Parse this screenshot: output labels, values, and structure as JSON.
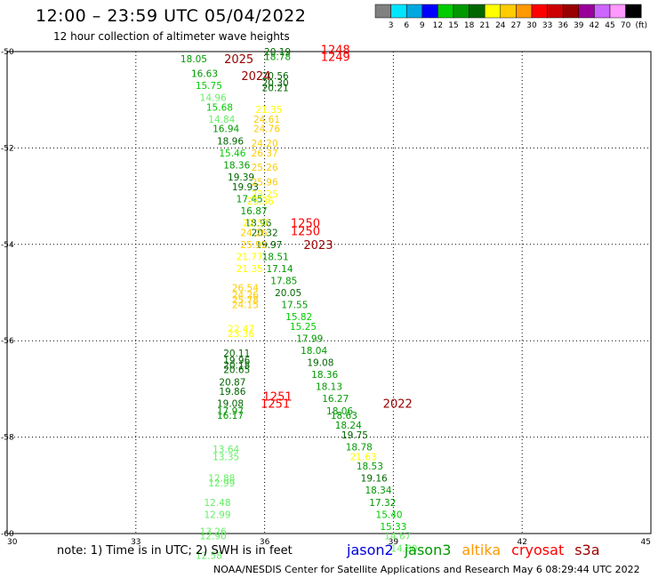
{
  "header": {
    "title": "12:00 – 23:59 UTC 05/04/2022",
    "subtitle": "12 hour collection of altimeter wave heights"
  },
  "legend_scale": {
    "labels": [
      "3",
      "6",
      "9",
      "12",
      "15",
      "18",
      "21",
      "24",
      "27",
      "30",
      "33",
      "36",
      "39",
      "42",
      "45",
      "70"
    ],
    "unit": "(ft)",
    "colors": [
      "#808080",
      "#00e5ff",
      "#00a8e0",
      "#0000ff",
      "#00cc00",
      "#009900",
      "#006600",
      "#ffff00",
      "#ffcc00",
      "#ff9900",
      "#ff0000",
      "#cc0000",
      "#990000",
      "#990099",
      "#cc66ff",
      "#ff99ff",
      "#000000"
    ]
  },
  "footer": {
    "note": "note:  1) Time is in UTC;  2) SWH is in feet",
    "credit": "NOAA/NESDIS Center for Satellite Applications and Research    May  6 08:29:44 UTC 2022",
    "satellites": [
      {
        "name": "jason2",
        "color": "#0000dd"
      },
      {
        "name": "jason3",
        "color": "#009900"
      },
      {
        "name": "altika",
        "color": "#ff9900"
      },
      {
        "name": "cryosat",
        "color": "#ff0000"
      },
      {
        "name": "s3a",
        "color": "#990000"
      }
    ]
  },
  "chart_data": {
    "type": "scatter",
    "title": "12:00 – 23:59 UTC 05/04/2022",
    "xlim": [
      30,
      45
    ],
    "ylim": [
      -60,
      -50
    ],
    "x_ticks": [
      "30",
      "33",
      "36",
      "39",
      "42",
      "45"
    ],
    "y_ticks": [
      "-50",
      "-52",
      "-54",
      "-56",
      "-58",
      "-60"
    ],
    "grid": true,
    "time_labels": [
      {
        "text": "2025",
        "lon": 35.4,
        "lat": -50.15,
        "color": "#990000"
      },
      {
        "text": "2024",
        "lon": 35.8,
        "lat": -50.5,
        "color": "#990000"
      },
      {
        "text": "1248",
        "lon": 37.65,
        "lat": -49.95,
        "color": "#ff0000"
      },
      {
        "text": "1249",
        "lon": 37.65,
        "lat": -50.1,
        "color": "#ff0000"
      },
      {
        "text": "1250",
        "lon": 36.95,
        "lat": -53.55,
        "color": "#ff0000"
      },
      {
        "text": "1250",
        "lon": 36.95,
        "lat": -53.72,
        "color": "#ff0000"
      },
      {
        "text": "2023",
        "lon": 37.25,
        "lat": -54.0,
        "color": "#990000"
      },
      {
        "text": "1251",
        "lon": 36.3,
        "lat": -57.15,
        "color": "#ff0000"
      },
      {
        "text": "1251",
        "lon": 36.25,
        "lat": -57.3,
        "color": "#ff0000"
      },
      {
        "text": "2022",
        "lon": 39.1,
        "lat": -57.3,
        "color": "#990000"
      }
    ],
    "series": [
      {
        "points": [
          {
            "text": "18.05",
            "lon": 34.35,
            "lat": -50.15,
            "color": "#009900"
          },
          {
            "text": "16.63",
            "lon": 34.6,
            "lat": -50.45,
            "color": "#009900"
          },
          {
            "text": "15.75",
            "lon": 34.7,
            "lat": -50.7,
            "color": "#00cc00"
          },
          {
            "text": "14.96",
            "lon": 34.8,
            "lat": -50.95,
            "color": "#66ee66"
          },
          {
            "text": "15.68",
            "lon": 34.95,
            "lat": -51.15,
            "color": "#00cc00"
          },
          {
            "text": "14.84",
            "lon": 35.0,
            "lat": -51.4,
            "color": "#66ee66"
          },
          {
            "text": "16.94",
            "lon": 35.1,
            "lat": -51.6,
            "color": "#009900"
          },
          {
            "text": "18.96",
            "lon": 35.2,
            "lat": -51.85,
            "color": "#006600"
          },
          {
            "text": "15.46",
            "lon": 35.25,
            "lat": -52.1,
            "color": "#00cc00"
          },
          {
            "text": "18.36",
            "lon": 35.35,
            "lat": -52.35,
            "color": "#009900"
          },
          {
            "text": "19.39",
            "lon": 35.45,
            "lat": -52.6,
            "color": "#006600"
          },
          {
            "text": "19.93",
            "lon": 35.55,
            "lat": -52.8,
            "color": "#006600"
          },
          {
            "text": "17.45",
            "lon": 35.65,
            "lat": -53.05,
            "color": "#009900"
          },
          {
            "text": "16.87",
            "lon": 35.75,
            "lat": -53.3,
            "color": "#009900"
          },
          {
            "text": "18.96",
            "lon": 35.85,
            "lat": -53.55,
            "color": "#006600"
          },
          {
            "text": "20.32",
            "lon": 36.0,
            "lat": -53.75,
            "color": "#006600"
          },
          {
            "text": "19.97",
            "lon": 36.1,
            "lat": -54.0,
            "color": "#006600"
          },
          {
            "text": "18.51",
            "lon": 36.25,
            "lat": -54.25,
            "color": "#009900"
          },
          {
            "text": "17.14",
            "lon": 36.35,
            "lat": -54.5,
            "color": "#009900"
          },
          {
            "text": "17.85",
            "lon": 36.45,
            "lat": -54.75,
            "color": "#009900"
          },
          {
            "text": "20.05",
            "lon": 36.55,
            "lat": -55.0,
            "color": "#006600"
          },
          {
            "text": "17.55",
            "lon": 36.7,
            "lat": -55.25,
            "color": "#009900"
          },
          {
            "text": "15.82",
            "lon": 36.8,
            "lat": -55.5,
            "color": "#00cc00"
          },
          {
            "text": "15.25",
            "lon": 36.9,
            "lat": -55.7,
            "color": "#00cc00"
          },
          {
            "text": "17.99",
            "lon": 37.05,
            "lat": -55.95,
            "color": "#009900"
          },
          {
            "text": "18.04",
            "lon": 37.15,
            "lat": -56.2,
            "color": "#009900"
          },
          {
            "text": "19.08",
            "lon": 37.3,
            "lat": -56.45,
            "color": "#006600"
          },
          {
            "text": "18.36",
            "lon": 37.4,
            "lat": -56.7,
            "color": "#009900"
          },
          {
            "text": "18.13",
            "lon": 37.5,
            "lat": -56.95,
            "color": "#009900"
          },
          {
            "text": "16.27",
            "lon": 37.65,
            "lat": -57.2,
            "color": "#009900"
          },
          {
            "text": "18.06",
            "lon": 37.75,
            "lat": -57.45,
            "color": "#009900"
          },
          {
            "text": "18.63",
            "lon": 37.85,
            "lat": -57.55,
            "color": "#009900"
          },
          {
            "text": "18.24",
            "lon": 37.95,
            "lat": -57.75,
            "color": "#009900"
          },
          {
            "text": "19.75",
            "lon": 38.1,
            "lat": -57.95,
            "color": "#006600"
          },
          {
            "text": "18.78",
            "lon": 38.2,
            "lat": -58.2,
            "color": "#009900"
          },
          {
            "text": "21.63",
            "lon": 38.3,
            "lat": -58.4,
            "color": "#ffff00"
          },
          {
            "text": "18.53",
            "lon": 38.45,
            "lat": -58.6,
            "color": "#009900"
          },
          {
            "text": "19.16",
            "lon": 38.55,
            "lat": -58.85,
            "color": "#006600"
          },
          {
            "text": "18.34",
            "lon": 38.65,
            "lat": -59.1,
            "color": "#009900"
          },
          {
            "text": "17.32",
            "lon": 38.75,
            "lat": -59.35,
            "color": "#009900"
          },
          {
            "text": "15.40",
            "lon": 38.9,
            "lat": -59.6,
            "color": "#00cc00"
          },
          {
            "text": "15.33",
            "lon": 39.0,
            "lat": -59.85,
            "color": "#00cc00"
          },
          {
            "text": "14.67",
            "lon": 39.1,
            "lat": -60.05,
            "color": "#66ee66"
          },
          {
            "text": "14.80",
            "lon": 39.25,
            "lat": -60.3,
            "color": "#66ee66"
          }
        ]
      },
      {
        "points": [
          {
            "text": "20.19",
            "lon": 36.3,
            "lat": -50.0,
            "color": "#006600"
          },
          {
            "text": "18.78",
            "lon": 36.3,
            "lat": -50.1,
            "color": "#009900"
          },
          {
            "text": "20.56",
            "lon": 36.25,
            "lat": -50.5,
            "color": "#006600"
          },
          {
            "text": "20.30",
            "lon": 36.25,
            "lat": -50.65,
            "color": "#006600"
          },
          {
            "text": "20.21",
            "lon": 36.25,
            "lat": -50.75,
            "color": "#006600"
          },
          {
            "text": "21.35",
            "lon": 36.1,
            "lat": -51.2,
            "color": "#ffff00"
          },
          {
            "text": "24.61",
            "lon": 36.05,
            "lat": -51.4,
            "color": "#ffcc00"
          },
          {
            "text": "24.76",
            "lon": 36.05,
            "lat": -51.6,
            "color": "#ffcc00"
          },
          {
            "text": "24.20",
            "lon": 36.0,
            "lat": -51.9,
            "color": "#ffcc00"
          },
          {
            "text": "26.37",
            "lon": 36.0,
            "lat": -52.1,
            "color": "#ffcc00"
          },
          {
            "text": "25.26",
            "lon": 36.0,
            "lat": -52.4,
            "color": "#ffcc00"
          },
          {
            "text": "25.96",
            "lon": 36.0,
            "lat": -52.7,
            "color": "#ffcc00"
          },
          {
            "text": "23.25",
            "lon": 36.0,
            "lat": -52.95,
            "color": "#ffff00"
          },
          {
            "text": "23.36",
            "lon": 35.9,
            "lat": -53.1,
            "color": "#ffff00"
          },
          {
            "text": "22.57",
            "lon": 35.8,
            "lat": -53.55,
            "color": "#ffff00"
          },
          {
            "text": "24.26",
            "lon": 35.75,
            "lat": -53.75,
            "color": "#ffcc00"
          },
          {
            "text": "25.92",
            "lon": 35.75,
            "lat": -54.0,
            "color": "#ffcc00"
          },
          {
            "text": "21.77",
            "lon": 35.65,
            "lat": -54.25,
            "color": "#ffff00"
          },
          {
            "text": "21.35",
            "lon": 35.65,
            "lat": -54.5,
            "color": "#ffff00"
          },
          {
            "text": "26.54",
            "lon": 35.55,
            "lat": -54.9,
            "color": "#ffcc00"
          },
          {
            "text": "24.26",
            "lon": 35.55,
            "lat": -55.05,
            "color": "#ffcc00"
          },
          {
            "text": "25.78",
            "lon": 35.55,
            "lat": -55.15,
            "color": "#ffcc00"
          },
          {
            "text": "24.15",
            "lon": 35.55,
            "lat": -55.25,
            "color": "#ffcc00"
          },
          {
            "text": "22.47",
            "lon": 35.45,
            "lat": -55.75,
            "color": "#ffff00"
          },
          {
            "text": "23.36",
            "lon": 35.45,
            "lat": -55.85,
            "color": "#ffff00"
          },
          {
            "text": "20.11",
            "lon": 35.35,
            "lat": -56.25,
            "color": "#006600"
          },
          {
            "text": "19.96",
            "lon": 35.35,
            "lat": -56.4,
            "color": "#006600"
          },
          {
            "text": "20.18",
            "lon": 35.35,
            "lat": -56.5,
            "color": "#006600"
          },
          {
            "text": "20.65",
            "lon": 35.35,
            "lat": -56.6,
            "color": "#006600"
          },
          {
            "text": "20.87",
            "lon": 35.25,
            "lat": -56.85,
            "color": "#006600"
          },
          {
            "text": "19.86",
            "lon": 35.25,
            "lat": -57.05,
            "color": "#006600"
          },
          {
            "text": "19.08",
            "lon": 35.2,
            "lat": -57.3,
            "color": "#006600"
          },
          {
            "text": "17.97",
            "lon": 35.2,
            "lat": -57.45,
            "color": "#009900"
          },
          {
            "text": "16.17",
            "lon": 35.2,
            "lat": -57.55,
            "color": "#009900"
          },
          {
            "text": "13.64",
            "lon": 35.1,
            "lat": -58.25,
            "color": "#66ee66"
          },
          {
            "text": "13.35",
            "lon": 35.1,
            "lat": -58.4,
            "color": "#66ee66"
          },
          {
            "text": "12.88",
            "lon": 35.0,
            "lat": -58.85,
            "color": "#66ee66"
          },
          {
            "text": "12.99",
            "lon": 35.0,
            "lat": -58.95,
            "color": "#66ee66"
          },
          {
            "text": "12.48",
            "lon": 34.9,
            "lat": -59.35,
            "color": "#66ee66"
          },
          {
            "text": "12.99",
            "lon": 34.9,
            "lat": -59.6,
            "color": "#66ee66"
          },
          {
            "text": "13.26",
            "lon": 34.8,
            "lat": -59.95,
            "color": "#66ee66"
          },
          {
            "text": "12.90",
            "lon": 34.8,
            "lat": -60.05,
            "color": "#66ee66"
          },
          {
            "text": "12.58",
            "lon": 34.7,
            "lat": -60.45,
            "color": "#66ee66"
          }
        ]
      }
    ]
  }
}
